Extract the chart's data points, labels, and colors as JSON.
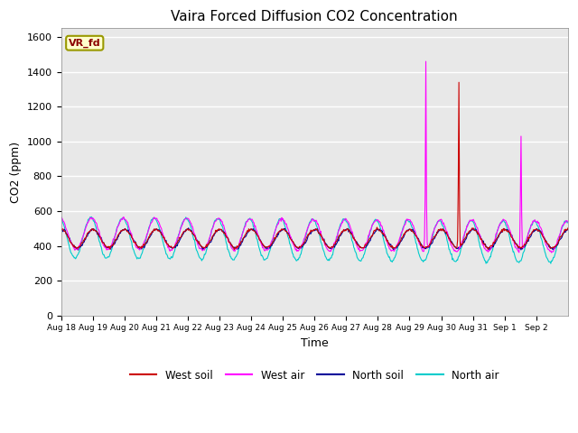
{
  "title": "Vaira Forced Diffusion CO2 Concentration",
  "xlabel": "Time",
  "ylabel": "CO2 (ppm)",
  "ylim": [
    0,
    1650
  ],
  "yticks": [
    0,
    200,
    400,
    600,
    800,
    1000,
    1200,
    1400,
    1600
  ],
  "label_tag": "VR_fd",
  "legend": [
    "West soil",
    "West air",
    "North soil",
    "North air"
  ],
  "colors": {
    "west_soil": "#cc0000",
    "west_air": "#ff00ff",
    "north_soil": "#000099",
    "north_air": "#00cccc"
  },
  "plot_bg_color": "#e8e8e8",
  "fig_bg_color": "#ffffff",
  "num_days": 16,
  "x_tick_labels": [
    "Aug 18",
    "Aug 19",
    "Aug 20",
    "Aug 21",
    "Aug 22",
    "Aug 23",
    "Aug 24",
    "Aug 25",
    "Aug 26",
    "Aug 27",
    "Aug 28",
    "Aug 29",
    "Aug 30",
    "Aug 31",
    "Sep 1",
    "Sep 2"
  ]
}
